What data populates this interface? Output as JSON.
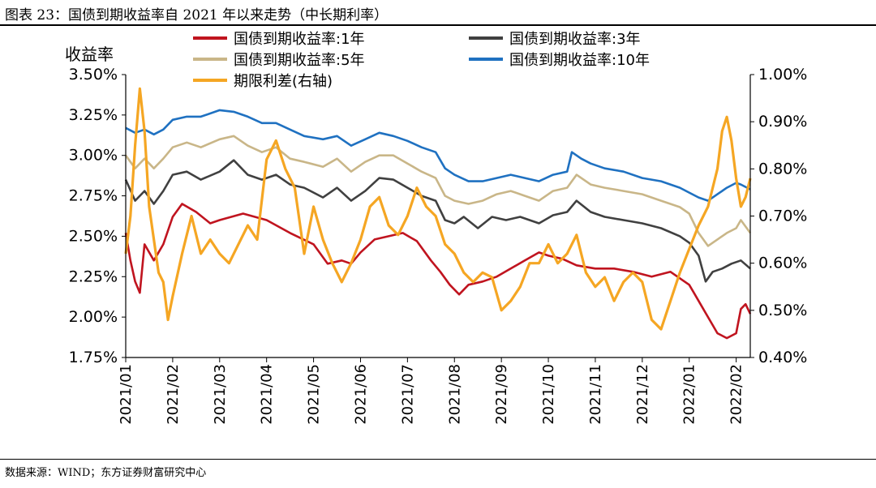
{
  "figure": {
    "title": "图表 23：国债到期收益率自 2021 年以来走势（中长期利率）",
    "source": "数据来源：WIND；东方证券财富研究中心"
  },
  "chart_data": {
    "type": "line",
    "title": "图表 23：国债到期收益率自 2021 年以来走势（中长期利率）",
    "ylabel": "收益率",
    "ylim": [
      1.75,
      3.5
    ],
    "yticks": [
      "1.75%",
      "2.00%",
      "2.25%",
      "2.50%",
      "2.75%",
      "3.00%",
      "3.25%",
      "3.50%"
    ],
    "y2lim": [
      0.4,
      1.0
    ],
    "y2ticks": [
      "0.40%",
      "0.50%",
      "0.60%",
      "0.70%",
      "0.80%",
      "0.90%",
      "1.00%"
    ],
    "xlim": [
      0,
      13.3
    ],
    "categories": [
      "2021/01",
      "2021/02",
      "2021/03",
      "2021/04",
      "2021/05",
      "2021/06",
      "2021/07",
      "2021/08",
      "2021/09",
      "2021/10",
      "2021/11",
      "2021/12",
      "2022/01",
      "2022/02"
    ],
    "legend_position": "top",
    "series": [
      {
        "name": "国债到期收益率:1年",
        "axis": "left",
        "color": "#C0141F",
        "x": [
          0,
          0.1,
          0.2,
          0.3,
          0.4,
          0.6,
          0.8,
          1.0,
          1.2,
          1.5,
          1.8,
          2.0,
          2.5,
          3.0,
          3.5,
          4.0,
          4.3,
          4.6,
          4.8,
          5.0,
          5.3,
          5.6,
          5.9,
          6.2,
          6.5,
          6.7,
          6.9,
          7.1,
          7.3,
          7.6,
          7.9,
          8.2,
          8.5,
          8.8,
          9.0,
          9.3,
          9.6,
          10.0,
          10.4,
          10.8,
          11.2,
          11.6,
          12.0,
          12.1,
          12.3,
          12.5,
          12.6,
          12.8,
          13.0,
          13.1,
          13.2,
          13.3
        ],
        "y": [
          2.52,
          2.35,
          2.22,
          2.15,
          2.45,
          2.35,
          2.45,
          2.62,
          2.7,
          2.65,
          2.58,
          2.6,
          2.64,
          2.6,
          2.52,
          2.45,
          2.33,
          2.35,
          2.33,
          2.4,
          2.48,
          2.5,
          2.52,
          2.47,
          2.35,
          2.28,
          2.2,
          2.14,
          2.2,
          2.22,
          2.25,
          2.3,
          2.35,
          2.4,
          2.38,
          2.36,
          2.32,
          2.3,
          2.3,
          2.28,
          2.25,
          2.28,
          2.2,
          2.15,
          2.05,
          1.95,
          1.9,
          1.87,
          1.9,
          2.05,
          2.08,
          2.02
        ]
      },
      {
        "name": "国债到期收益率:3年",
        "axis": "left",
        "color": "#404040",
        "x": [
          0,
          0.2,
          0.4,
          0.6,
          0.8,
          1.0,
          1.3,
          1.6,
          2.0,
          2.3,
          2.6,
          2.9,
          3.2,
          3.5,
          3.8,
          4.2,
          4.5,
          4.8,
          5.1,
          5.4,
          5.7,
          6.0,
          6.3,
          6.6,
          6.8,
          7.0,
          7.2,
          7.5,
          7.8,
          8.1,
          8.4,
          8.8,
          9.1,
          9.4,
          9.6,
          9.9,
          10.2,
          10.6,
          11.0,
          11.4,
          11.8,
          12.0,
          12.2,
          12.35,
          12.5,
          12.7,
          12.9,
          13.1,
          13.3
        ],
        "y": [
          2.85,
          2.72,
          2.78,
          2.7,
          2.78,
          2.88,
          2.9,
          2.85,
          2.9,
          2.97,
          2.88,
          2.85,
          2.88,
          2.82,
          2.8,
          2.74,
          2.8,
          2.72,
          2.78,
          2.86,
          2.85,
          2.8,
          2.75,
          2.72,
          2.6,
          2.58,
          2.62,
          2.55,
          2.62,
          2.6,
          2.62,
          2.58,
          2.63,
          2.65,
          2.72,
          2.65,
          2.62,
          2.6,
          2.58,
          2.55,
          2.5,
          2.46,
          2.38,
          2.22,
          2.28,
          2.3,
          2.33,
          2.35,
          2.3
        ]
      },
      {
        "name": "国债到期收益率:5年",
        "axis": "left",
        "color": "#C9B688",
        "x": [
          0,
          0.2,
          0.4,
          0.6,
          0.8,
          1.0,
          1.3,
          1.6,
          2.0,
          2.3,
          2.6,
          2.9,
          3.2,
          3.5,
          3.8,
          4.2,
          4.5,
          4.8,
          5.1,
          5.4,
          5.7,
          6.0,
          6.3,
          6.6,
          6.8,
          7.0,
          7.3,
          7.6,
          7.9,
          8.2,
          8.5,
          8.8,
          9.1,
          9.4,
          9.6,
          9.9,
          10.2,
          10.6,
          11.0,
          11.4,
          11.8,
          12.0,
          12.2,
          12.4,
          12.6,
          12.8,
          13.0,
          13.1,
          13.3
        ],
        "y": [
          3.0,
          2.92,
          2.98,
          2.92,
          2.98,
          3.05,
          3.08,
          3.05,
          3.1,
          3.12,
          3.06,
          3.02,
          3.05,
          2.98,
          2.96,
          2.93,
          2.98,
          2.9,
          2.96,
          3.0,
          3.0,
          2.95,
          2.9,
          2.86,
          2.75,
          2.72,
          2.7,
          2.72,
          2.76,
          2.78,
          2.75,
          2.72,
          2.78,
          2.8,
          2.88,
          2.82,
          2.8,
          2.78,
          2.76,
          2.72,
          2.68,
          2.64,
          2.52,
          2.44,
          2.48,
          2.52,
          2.55,
          2.6,
          2.52
        ]
      },
      {
        "name": "国债到期收益率:10年",
        "axis": "left",
        "color": "#1F71C1",
        "x": [
          0,
          0.2,
          0.4,
          0.6,
          0.8,
          1.0,
          1.3,
          1.6,
          2.0,
          2.3,
          2.6,
          2.9,
          3.2,
          3.5,
          3.8,
          4.2,
          4.5,
          4.8,
          5.1,
          5.4,
          5.7,
          6.0,
          6.3,
          6.6,
          6.8,
          7.0,
          7.3,
          7.6,
          7.9,
          8.2,
          8.5,
          8.8,
          9.1,
          9.4,
          9.5,
          9.7,
          9.9,
          10.2,
          10.6,
          11.0,
          11.4,
          11.8,
          12.0,
          12.2,
          12.4,
          12.6,
          12.8,
          13.0,
          13.1,
          13.3
        ],
        "y": [
          3.17,
          3.14,
          3.16,
          3.13,
          3.16,
          3.22,
          3.24,
          3.24,
          3.28,
          3.27,
          3.24,
          3.2,
          3.2,
          3.16,
          3.12,
          3.1,
          3.12,
          3.06,
          3.1,
          3.14,
          3.12,
          3.09,
          3.05,
          3.02,
          2.92,
          2.88,
          2.84,
          2.84,
          2.86,
          2.88,
          2.86,
          2.84,
          2.88,
          2.9,
          3.02,
          2.98,
          2.95,
          2.92,
          2.9,
          2.86,
          2.84,
          2.8,
          2.77,
          2.74,
          2.72,
          2.76,
          2.8,
          2.83,
          2.82,
          2.79
        ]
      },
      {
        "name": "期限利差(右轴)",
        "axis": "right",
        "color": "#F5A623",
        "x": [
          0,
          0.1,
          0.2,
          0.3,
          0.4,
          0.5,
          0.6,
          0.7,
          0.8,
          0.9,
          1.0,
          1.2,
          1.4,
          1.6,
          1.8,
          2.0,
          2.2,
          2.4,
          2.6,
          2.8,
          3.0,
          3.2,
          3.4,
          3.6,
          3.8,
          4.0,
          4.2,
          4.4,
          4.6,
          4.8,
          5.0,
          5.2,
          5.4,
          5.6,
          5.8,
          6.0,
          6.2,
          6.4,
          6.6,
          6.8,
          7.0,
          7.2,
          7.4,
          7.6,
          7.8,
          8.0,
          8.2,
          8.4,
          8.6,
          8.8,
          9.0,
          9.2,
          9.4,
          9.6,
          9.8,
          10.0,
          10.2,
          10.4,
          10.6,
          10.8,
          11.0,
          11.2,
          11.4,
          11.6,
          11.8,
          12.0,
          12.2,
          12.4,
          12.6,
          12.7,
          12.8,
          12.9,
          13.0,
          13.1,
          13.2,
          13.3
        ],
        "y": [
          0.62,
          0.7,
          0.85,
          0.97,
          0.88,
          0.72,
          0.65,
          0.58,
          0.56,
          0.48,
          0.53,
          0.62,
          0.7,
          0.62,
          0.65,
          0.62,
          0.6,
          0.64,
          0.68,
          0.65,
          0.82,
          0.86,
          0.8,
          0.76,
          0.62,
          0.72,
          0.65,
          0.6,
          0.56,
          0.6,
          0.65,
          0.72,
          0.74,
          0.68,
          0.66,
          0.7,
          0.76,
          0.72,
          0.7,
          0.64,
          0.62,
          0.58,
          0.56,
          0.58,
          0.57,
          0.5,
          0.52,
          0.55,
          0.6,
          0.6,
          0.64,
          0.6,
          0.62,
          0.66,
          0.58,
          0.55,
          0.57,
          0.52,
          0.56,
          0.58,
          0.56,
          0.48,
          0.46,
          0.52,
          0.58,
          0.63,
          0.68,
          0.72,
          0.8,
          0.88,
          0.91,
          0.86,
          0.78,
          0.72,
          0.74,
          0.78
        ]
      }
    ]
  }
}
